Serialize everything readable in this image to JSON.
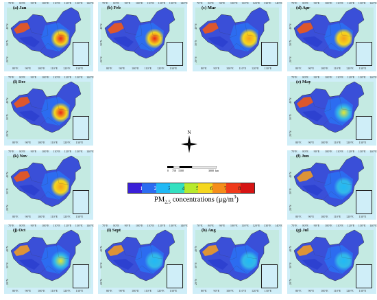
{
  "top_ticks": [
    "70°E",
    "80°E",
    "90°E",
    "100°E",
    "110°E",
    "120°E",
    "130°E",
    "140°E"
  ],
  "bottom_ticks": [
    "80°E",
    "90°E",
    "100°E",
    "110°E",
    "120°E",
    "130°E"
  ],
  "lat_ticks": [
    "40°N",
    "30°N",
    "20°N"
  ],
  "panels": [
    {
      "id": "jan",
      "label": "(a) Jan",
      "pos": "r1c1",
      "hot": 0.95
    },
    {
      "id": "feb",
      "label": "(b) Feb",
      "pos": "r1c2",
      "hot": 0.85
    },
    {
      "id": "mar",
      "label": "(c) Mar",
      "pos": "r1c3",
      "hot": 0.7
    },
    {
      "id": "apr",
      "label": "(d) Apr",
      "pos": "r1c4",
      "hot": 0.6
    },
    {
      "id": "dec",
      "label": "(l) Dec",
      "pos": "r2c1",
      "hot": 0.9
    },
    {
      "id": "may",
      "label": "(e) May",
      "pos": "r2c4",
      "hot": 0.45
    },
    {
      "id": "nov",
      "label": "(k) Nov",
      "pos": "r3c1",
      "hot": 0.6
    },
    {
      "id": "jun",
      "label": "(f) Jun",
      "pos": "r3c4",
      "hot": 0.15
    },
    {
      "id": "oct",
      "label": "(j) Oct",
      "pos": "r4c1",
      "hot": 0.35
    },
    {
      "id": "sept",
      "label": "(i) Sept",
      "pos": "r4c2",
      "hot": 0.2
    },
    {
      "id": "aug",
      "label": "(h) Aug",
      "pos": "r4c3",
      "hot": 0.1
    },
    {
      "id": "jul",
      "label": "(g) Jul",
      "pos": "r4c4",
      "hot": 0.12
    }
  ],
  "north_label": "N",
  "scale": {
    "labels": [
      "0",
      "750",
      "1500",
      "3000"
    ],
    "unit": "km"
  },
  "legend": {
    "title_prefix": "PM",
    "title_sub": "2.5",
    "title_mid": " concentrations (μg/m",
    "title_sup": "3",
    "title_suffix": ")",
    "ticks": [
      "15",
      "25",
      "35",
      "45",
      "55",
      "65",
      "75",
      "85"
    ],
    "colors": [
      "#3a1fd8",
      "#2c6cf0",
      "#21b9f5",
      "#33e0c0",
      "#b8ea2c",
      "#f5d71f",
      "#f58d1a",
      "#f03a1a",
      "#d61414"
    ]
  }
}
